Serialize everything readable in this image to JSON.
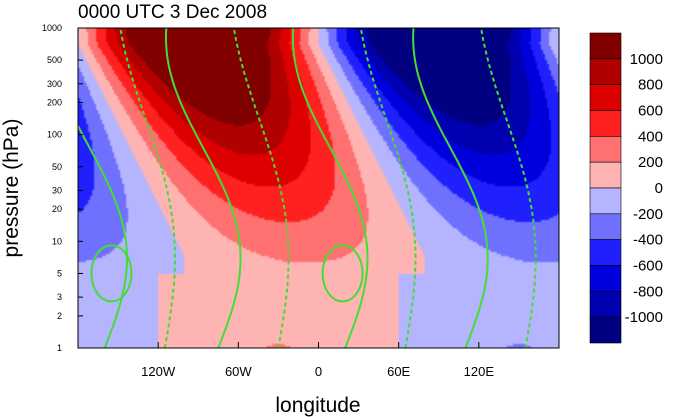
{
  "chart_data": {
    "type": "heatmap",
    "title": "0000 UTC 3 Dec 2008",
    "xlabel": "longitude",
    "ylabel": "pressure (hPa)",
    "x_range": [
      -180,
      180
    ],
    "x_ticks": [
      -120,
      -60,
      0,
      60,
      120
    ],
    "x_tick_labels": [
      "120W",
      "60W",
      "0",
      "60E",
      "120E"
    ],
    "y_scale": "log",
    "y_range": [
      1000,
      1
    ],
    "y_ticks": [
      1,
      2,
      3,
      5,
      10,
      20,
      30,
      50,
      100,
      200,
      300,
      500,
      1000
    ],
    "y_tick_labels": [
      "1",
      "2",
      "3",
      "5",
      "10",
      "20",
      "30",
      "50",
      "100",
      "200",
      "300",
      "500",
      "1000"
    ],
    "colorbar": {
      "levels": [
        1000,
        800,
        600,
        400,
        200,
        0,
        -200,
        -400,
        -600,
        -800,
        -1000
      ],
      "labels": [
        "1000",
        "800",
        "600",
        "400",
        "200",
        "0",
        "-200",
        "-400",
        "-600",
        "-800",
        "-1000"
      ],
      "colors": [
        "#800000",
        "#b00000",
        "#dc0000",
        "#ff2020",
        "#ff7070",
        "#ffb4b4",
        "#b4b4ff",
        "#7070ff",
        "#2020ff",
        "#0000dc",
        "#0000b0",
        "#000080"
      ]
    },
    "contour_color": "#44dd33",
    "grid": false
  }
}
